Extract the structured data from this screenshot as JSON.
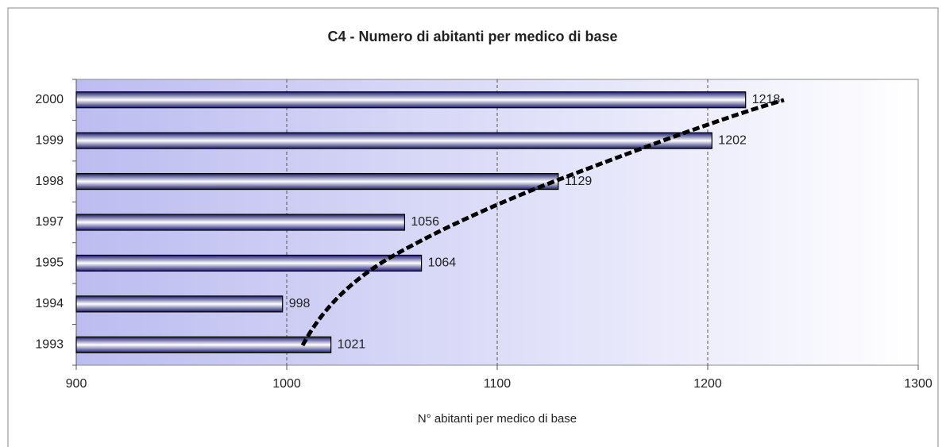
{
  "chart_data": {
    "type": "barh",
    "title": "C4 - Numero di abitanti per medico di base",
    "xlabel": "N° abitanti per medico di base",
    "categories": [
      "1993",
      "1994",
      "1995",
      "1997",
      "1998",
      "1999",
      "2000"
    ],
    "values": [
      1021,
      998,
      1064,
      1056,
      1129,
      1202,
      1218
    ],
    "xlim": [
      900,
      1300
    ],
    "xticks": [
      900,
      1000,
      1100,
      1200,
      1300
    ],
    "grid": true,
    "color": "#1a1a6e"
  }
}
